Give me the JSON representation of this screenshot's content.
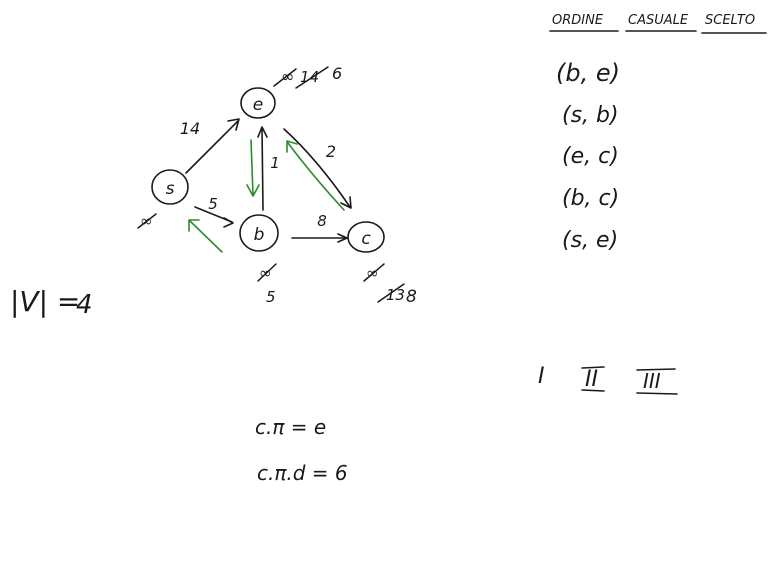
{
  "graph": {
    "nodes": [
      {
        "id": "e",
        "label": "e"
      },
      {
        "id": "s",
        "label": "s"
      },
      {
        "id": "b",
        "label": "b"
      },
      {
        "id": "c",
        "label": "c"
      }
    ],
    "edges": [
      {
        "from": "s",
        "to": "e",
        "weight": "14"
      },
      {
        "from": "s",
        "to": "b",
        "weight": "5"
      },
      {
        "from": "b",
        "to": "e",
        "weight": "1"
      },
      {
        "from": "e",
        "to": "c",
        "weight": "2"
      },
      {
        "from": "b",
        "to": "c",
        "weight": "8"
      }
    ],
    "distances": {
      "e": {
        "crossed": [
          "∞",
          "14"
        ],
        "final": "6"
      },
      "s": {
        "crossed": [],
        "final": "∞"
      },
      "b": {
        "crossed": [
          "∞"
        ],
        "final": "5"
      },
      "c": {
        "crossed": [
          "∞",
          "13"
        ],
        "final": "8"
      }
    }
  },
  "vertex_count": {
    "label": "|V| =",
    "value": "4"
  },
  "table": {
    "headers": [
      "ORDINE",
      "CASUALE",
      "SCELTO"
    ],
    "rows": [
      "(b, e)",
      "(s, b)",
      "(e, c)",
      "(b, c)",
      "(s, e)"
    ]
  },
  "iterations": [
    "I",
    "II",
    "III"
  ],
  "notes": [
    "c.π = e",
    "c.π.d = 6"
  ]
}
